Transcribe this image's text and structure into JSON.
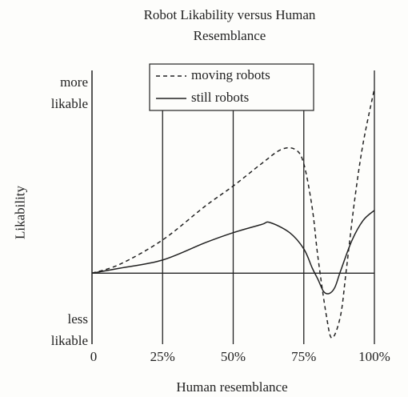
{
  "chart_data": {
    "type": "line",
    "title": "Robot Likability versus Human Resemblance",
    "xlabel": "Human resemblance",
    "ylabel": "Likability",
    "xlim": [
      0,
      100
    ],
    "xticks": [
      0,
      {
        "value": 25,
        "label": "25%"
      },
      {
        "value": 50,
        "label": "50%"
      },
      {
        "value": 75,
        "label": "75%"
      },
      {
        "value": 100,
        "label": "100%"
      }
    ],
    "ylim": [
      -0.35,
      1.0
    ],
    "yticks": [
      {
        "value": -0.28,
        "label": "less likable"
      },
      {
        "value": 0.89,
        "label": "more likable"
      }
    ],
    "grid": true,
    "legend": "top",
    "series": [
      {
        "name": "moving robots",
        "color": "#222222",
        "style": "dashed",
        "x": [
          0,
          10,
          25,
          40,
          50,
          60,
          67,
          72,
          75,
          78,
          80,
          83,
          85,
          88,
          90,
          93,
          96,
          100
        ],
        "values": [
          0,
          0.045,
          0.164,
          0.33,
          0.43,
          0.54,
          0.61,
          0.61,
          0.54,
          0.32,
          0.08,
          -0.21,
          -0.32,
          -0.21,
          0.01,
          0.36,
          0.64,
          0.91
        ]
      },
      {
        "name": "still robots",
        "color": "#222222",
        "style": "solid",
        "x": [
          0,
          10,
          25,
          40,
          50,
          60,
          63,
          70,
          75,
          78,
          80,
          82,
          84,
          86,
          88,
          92,
          96,
          100
        ],
        "values": [
          0,
          0.025,
          0.065,
          0.15,
          0.2,
          0.24,
          0.25,
          0.2,
          0.12,
          0.025,
          -0.03,
          -0.09,
          -0.1,
          -0.07,
          0.01,
          0.16,
          0.26,
          0.31
        ]
      }
    ]
  }
}
